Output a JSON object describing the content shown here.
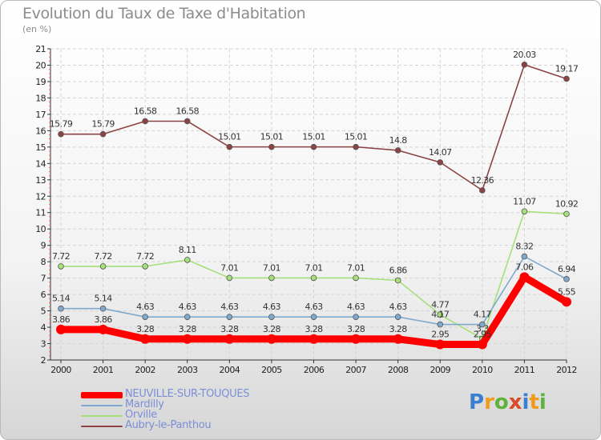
{
  "header": {
    "title": "Evolution du Taux de Taxe d'Habitation",
    "subtitle": "(en %)"
  },
  "logo": {
    "letters": [
      "P",
      "r",
      "o",
      "x",
      "i",
      "t",
      "i"
    ],
    "colors": [
      "#3a7fd0",
      "#f29a1c",
      "#5fb23a",
      "#d94a2a",
      "#3a7fd0",
      "#f29a1c",
      "#5fb23a"
    ]
  },
  "chart_data": {
    "type": "line",
    "title": "Evolution du Taux de Taxe d'Habitation",
    "ylabel": "(en %)",
    "ylim": [
      2,
      21
    ],
    "yticks": [
      2,
      3,
      4,
      5,
      6,
      7,
      8,
      9,
      10,
      11,
      12,
      13,
      14,
      15,
      16,
      17,
      18,
      19,
      20,
      21
    ],
    "categories": [
      "2000",
      "2001",
      "2002",
      "2003",
      "2004",
      "2005",
      "2006",
      "2007",
      "2008",
      "2009",
      "2010",
      "2011",
      "2012"
    ],
    "grid": true,
    "legend": "bottom-left",
    "series": [
      {
        "name": "Aubry-le-Panthou",
        "color": "#8b4343",
        "values": [
          15.79,
          15.79,
          16.58,
          16.58,
          15.01,
          15.01,
          15.01,
          15.01,
          14.8,
          14.07,
          12.36,
          20.03,
          19.17
        ],
        "labels": [
          "15.79",
          "15.79",
          "16.58",
          "16.58",
          "15.01",
          "15.01",
          "15.01",
          "15.01",
          "14.8",
          "14.07",
          "12.36",
          "20.03",
          "19.17"
        ]
      },
      {
        "name": "Orville",
        "color": "#a6e07a",
        "values": [
          7.72,
          7.72,
          7.72,
          8.11,
          7.01,
          7.01,
          7.01,
          7.01,
          6.86,
          4.77,
          3.3,
          11.07,
          10.92
        ],
        "labels": [
          "7.72",
          "7.72",
          "7.72",
          "8.11",
          "7.01",
          "7.01",
          "7.01",
          "7.01",
          "6.86",
          "4.77",
          "3.3",
          "11.07",
          "10.92"
        ]
      },
      {
        "name": "Mardilly",
        "color": "#7fa9cf",
        "values": [
          5.14,
          5.14,
          4.63,
          4.63,
          4.63,
          4.63,
          4.63,
          4.63,
          4.63,
          4.17,
          4.17,
          8.32,
          6.94
        ],
        "labels": [
          "5.14",
          "5.14",
          "4.63",
          "4.63",
          "4.63",
          "4.63",
          "4.63",
          "4.63",
          "4.63",
          "4.17",
          "4.17",
          "8.32",
          "6.94"
        ]
      },
      {
        "name": "NEUVILLE-SUR-TOUQUES",
        "color": "#ff0000",
        "values": [
          3.86,
          3.86,
          3.28,
          3.28,
          3.28,
          3.28,
          3.28,
          3.28,
          3.28,
          2.95,
          2.95,
          7.06,
          5.55
        ],
        "labels": [
          "3.86",
          "3.86",
          "3.28",
          "3.28",
          "3.28",
          "3.28",
          "3.28",
          "3.28",
          "3.28",
          "2.95",
          "2.95",
          "7.06",
          "5.55"
        ]
      }
    ]
  }
}
